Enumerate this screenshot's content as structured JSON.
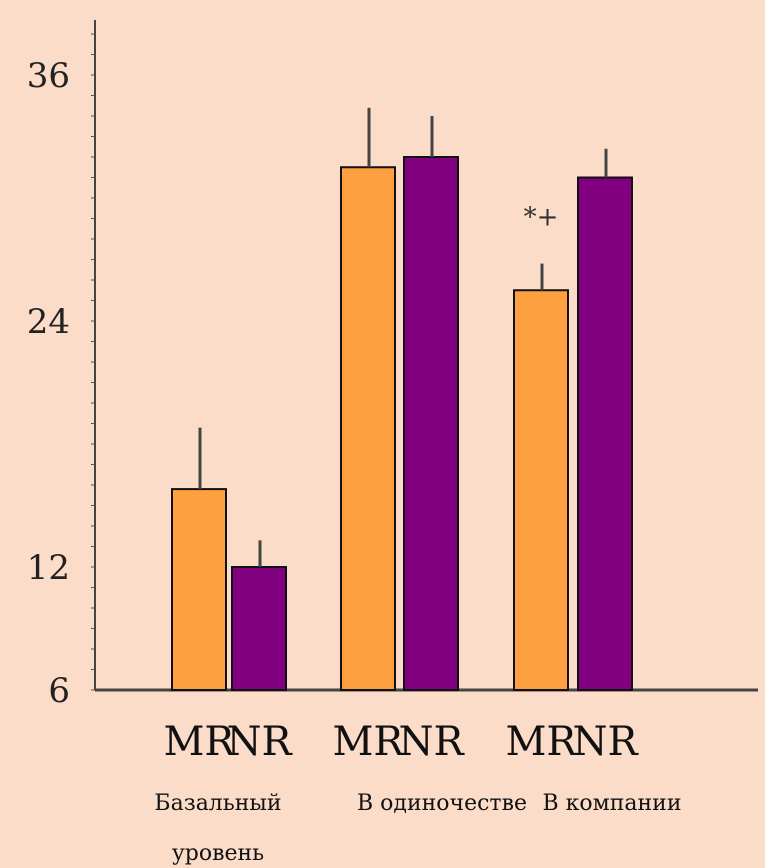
{
  "chart_data": {
    "type": "bar",
    "title": "",
    "xlabel": "",
    "ylabel": "",
    "ylim": [
      6,
      38
    ],
    "yticks": [
      "36",
      "24",
      "12",
      "6"
    ],
    "ytick_values": [
      36,
      24,
      12,
      6
    ],
    "groups": [
      {
        "label": "Базальный уровень",
        "label_lines": [
          "Базальный",
          "уровень"
        ]
      },
      {
        "label": "В одиночестве",
        "label_lines": [
          "В одиночестве"
        ]
      },
      {
        "label": "В компании",
        "label_lines": [
          "В компании"
        ]
      }
    ],
    "bars": [
      {
        "label": "MR",
        "group": 0,
        "value": 15.8,
        "error": 3.0,
        "color": "#ffa040"
      },
      {
        "label": "NR",
        "group": 0,
        "value": 12.0,
        "error": 1.3,
        "color": "#800080"
      },
      {
        "label": "MR",
        "group": 1,
        "value": 31.5,
        "error": 2.9,
        "color": "#ffa040"
      },
      {
        "label": "NR",
        "group": 1,
        "value": 32.0,
        "error": 2.0,
        "color": "#800080"
      },
      {
        "label": "MR",
        "group": 2,
        "value": 25.5,
        "error": 1.3,
        "color": "#ffa040"
      },
      {
        "label": "NR",
        "group": 2,
        "value": 31.0,
        "error": 1.4,
        "color": "#800080"
      }
    ],
    "annotations": [
      {
        "text": "*+",
        "bar_index": 4
      }
    ],
    "grid": false,
    "legend": "none"
  }
}
